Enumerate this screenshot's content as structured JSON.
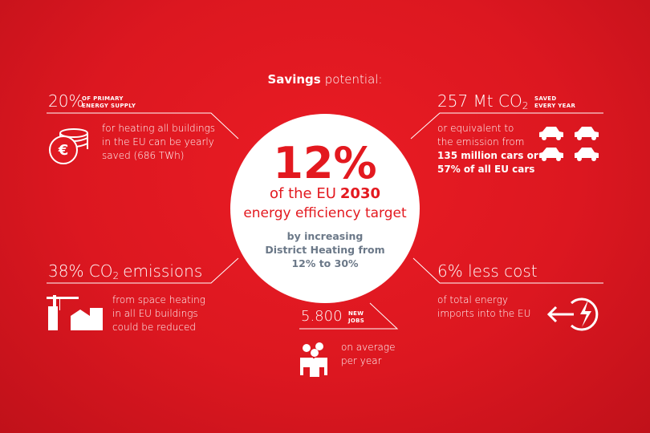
{
  "heading": {
    "bold": "Savings",
    "rest": "potential:"
  },
  "center": {
    "big": "12%",
    "line1_pre": "of the EU",
    "line1_bold": "2030",
    "line2": "energy efficiency target",
    "sub": [
      "by increasing",
      "District Heating from",
      "12% to 30%"
    ]
  },
  "top_left": {
    "headline": "20%",
    "tag": [
      "OF PRIMARY",
      "ENERGY SUPPLY"
    ],
    "coin_symbol": "€",
    "text": [
      "for heating all buildings",
      "in the EU can be yearly",
      "saved (686 TWh)"
    ]
  },
  "top_right": {
    "headline": "257 Mt CO",
    "headline_sub": "2",
    "tag": [
      "SAVED",
      "EVERY YEAR"
    ],
    "text": [
      "or equivalent to",
      "the emission from"
    ],
    "bold": [
      "135 million cars or",
      "57% of all EU cars"
    ]
  },
  "bottom_left": {
    "headline": "38% CO",
    "headline_sub": "2",
    "headline_rest": "emissions",
    "text": [
      "from space heating",
      "in all EU buildings",
      "could be reduced"
    ]
  },
  "bottom_right": {
    "headline": "6% less cost",
    "text": [
      "of total energy",
      "imports into the EU"
    ]
  },
  "bottom_center": {
    "headline": "5.800",
    "tag": [
      "NEW",
      "JOBS"
    ],
    "text": [
      "on average",
      "per year"
    ]
  }
}
